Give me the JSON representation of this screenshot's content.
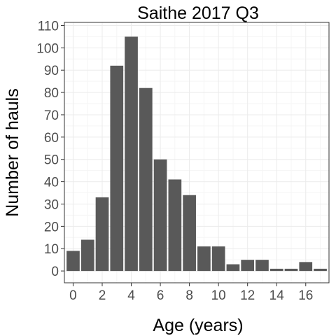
{
  "chart_data": {
    "type": "bar",
    "title": "Saithe 2017 Q3",
    "xlabel": "Age (years)",
    "ylabel": "Number of hauls",
    "x": [
      0,
      1,
      2,
      3,
      4,
      5,
      6,
      7,
      8,
      9,
      10,
      11,
      12,
      13,
      14,
      15,
      16,
      17
    ],
    "values": [
      9,
      14,
      33,
      92,
      105,
      82,
      50,
      41,
      34,
      11,
      11,
      3,
      5,
      5,
      1,
      1,
      4,
      1
    ],
    "xticks": [
      "0",
      "2",
      "4",
      "6",
      "8",
      "10",
      "12",
      "14",
      "16"
    ],
    "xtick_values": [
      0,
      2,
      4,
      6,
      8,
      10,
      12,
      14,
      16
    ],
    "yticks": [
      "0",
      "10",
      "20",
      "30",
      "40",
      "50",
      "60",
      "70",
      "80",
      "90",
      "100",
      "110"
    ],
    "ytick_values": [
      0,
      10,
      20,
      30,
      40,
      50,
      60,
      70,
      80,
      90,
      100,
      110
    ],
    "xlim": [
      -0.6,
      17.6
    ],
    "ylim": [
      -5.3,
      111.4
    ],
    "grid": true,
    "legend": "none",
    "bar_color": "#595959",
    "grid_major_color": "#ebebeb",
    "grid_minor_color": "#f5f5f5",
    "panel_border_color": "#333333",
    "tick_color": "#333333"
  }
}
